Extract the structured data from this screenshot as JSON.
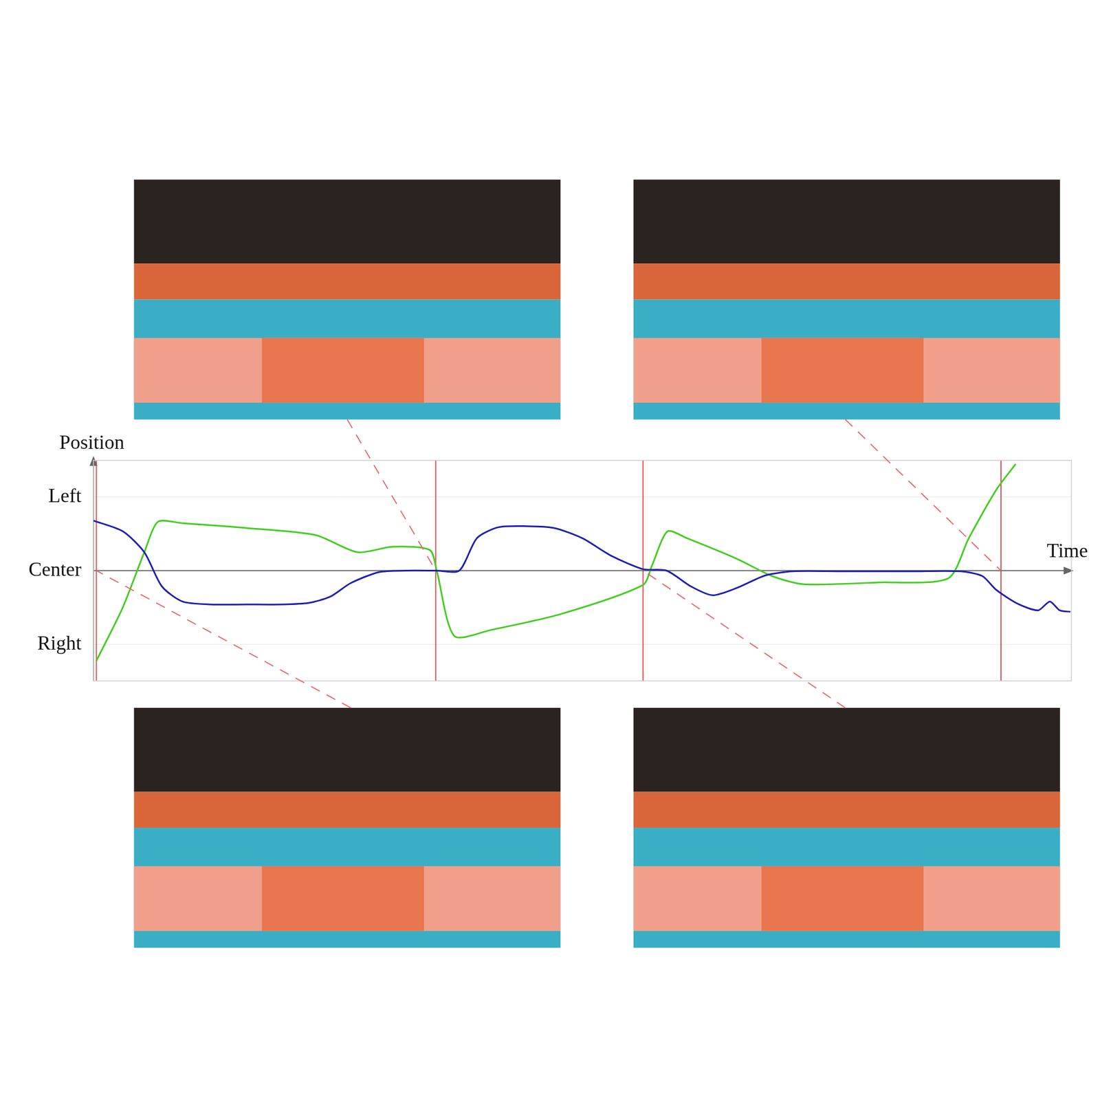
{
  "chart_data": {
    "type": "line",
    "x_label": "Time",
    "y_label": "Position",
    "xlim": [
      0,
      100
    ],
    "ylim": [
      -3,
      3
    ],
    "yticks": [
      {
        "value": 2,
        "label": "Left"
      },
      {
        "value": 0,
        "label": "Center"
      },
      {
        "value": -2,
        "label": "Right"
      }
    ],
    "grid": true,
    "tick_labels": "y",
    "vertical_lines": {
      "color": "#e05050",
      "x": [
        0.3,
        35.0,
        56.2,
        92.8
      ]
    },
    "series": [
      {
        "color": "#1f1fb0",
        "line_style": "solid",
        "x": [
          0,
          3,
          5.2,
          7,
          9.1,
          12,
          15.6,
          19.2,
          22,
          24.2,
          26.3,
          29.2,
          32,
          35,
          37.4,
          39.2,
          41.4,
          44.3,
          47.1,
          50,
          52.9,
          56.2,
          58.6,
          61.1,
          63.3,
          65.8,
          68.7,
          71.5,
          76.5,
          83.7,
          88.7,
          90.9,
          92.3,
          94.5,
          96.6,
          97.8,
          98.8,
          99.9
        ],
        "values": [
          1.36,
          1.07,
          0.5,
          -0.43,
          -0.84,
          -0.92,
          -0.92,
          -0.92,
          -0.88,
          -0.71,
          -0.34,
          -0.04,
          0,
          0,
          0,
          0.88,
          1.18,
          1.21,
          1.16,
          0.88,
          0.41,
          0.04,
          0,
          -0.43,
          -0.67,
          -0.47,
          -0.13,
          -0.02,
          -0.02,
          -0.02,
          -0.02,
          -0.15,
          -0.52,
          -0.9,
          -1.08,
          -0.84,
          -1.08,
          -1.12
        ]
      },
      {
        "color": "#44cc22",
        "line_style": "solid",
        "x": [
          0.3,
          3,
          5.2,
          6.6,
          9.1,
          15.6,
          22.7,
          27,
          30.6,
          34.4,
          35.1,
          36.9,
          40.7,
          47.8,
          56.2,
          57.1,
          58.7,
          60.7,
          65.8,
          69.4,
          72.6,
          80.2,
          87.4,
          89.5,
          92.3,
          94.3
        ],
        "values": [
          -2.45,
          -1,
          0.5,
          1.33,
          1.29,
          1.16,
          0.97,
          0.5,
          0.65,
          0.56,
          0,
          -1.78,
          -1.61,
          -1.18,
          -0.39,
          0.13,
          1.07,
          0.88,
          0.32,
          -0.15,
          -0.37,
          -0.32,
          -0.21,
          0.88,
          2.19,
          2.9
        ]
      }
    ]
  }
}
